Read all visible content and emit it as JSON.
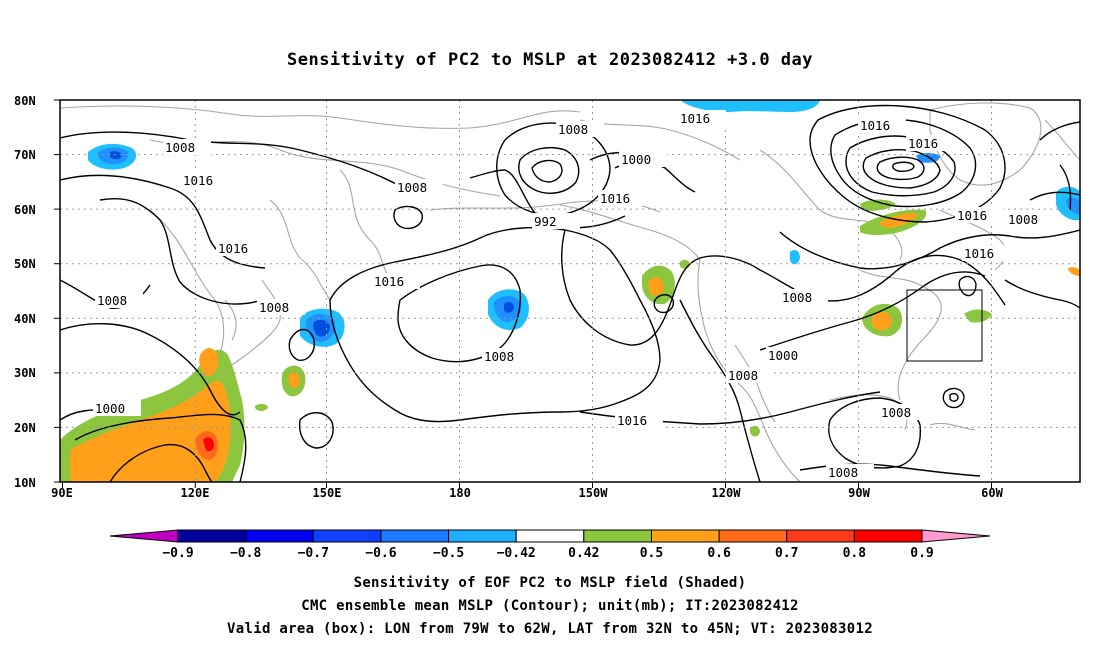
{
  "title": "Sensitivity of PC2 to MSLP at 2023082412 +3.0 day",
  "map": {
    "lat_labels": [
      "80N",
      "70N",
      "60N",
      "50N",
      "40N",
      "30N",
      "20N",
      "10N"
    ],
    "lon_labels": [
      "90E",
      "120E",
      "150E",
      "180",
      "150W",
      "120W",
      "90W",
      "60W"
    ],
    "valid_box": {
      "lon": [
        "79W",
        "62W"
      ],
      "lat": [
        "32N",
        "45N"
      ]
    },
    "contour_labels": [
      "1008",
      "1016",
      "1016",
      "1008",
      "1008",
      "1000",
      "1008",
      "1016",
      "1008",
      "1016",
      "1016",
      "1000",
      "992",
      "1008",
      "1016",
      "1016",
      "1016",
      "1016",
      "1008",
      "1016",
      "1008",
      "1000",
      "1008",
      "1008"
    ],
    "colors": {
      "sea": "#ffffff",
      "coast": "#a6a6a6",
      "contour": "#000000",
      "grid": "#9a9a9a",
      "pos_weak": "#8cc63f",
      "pos_mid": "#ff9f1a",
      "pos_strong": "#ff6a1a",
      "pos_max": "#ff0000",
      "neg_weak": "#1fbfff",
      "neg_mid": "#1e90ff",
      "neg_strong": "#0050e0"
    }
  },
  "colorbar": {
    "labels": [
      "-0.9",
      "-0.8",
      "-0.7",
      "-0.6",
      "-0.5",
      "-0.42",
      "0.42",
      "0.5",
      "0.6",
      "0.7",
      "0.8",
      "0.9"
    ],
    "colors": [
      "#c000c0",
      "#0000a0",
      "#0000f0",
      "#1040ff",
      "#1e78ff",
      "#1fb0ff",
      "#1fe0ff",
      "#ffffff",
      "#8cc63f",
      "#ff9f1a",
      "#ff6a1a",
      "#ff4a1a",
      "#ff2a1a",
      "#ff0000",
      "#ff9ad0"
    ]
  },
  "captions": [
    "Sensitivity of EOF PC2 to MSLP field (Shaded)",
    "CMC ensemble mean MSLP (Contour); unit(mb); IT:2023082412",
    "Valid area (box): LON from 79W to 62W, LAT from 32N to 45N; VT: 2023083012"
  ]
}
